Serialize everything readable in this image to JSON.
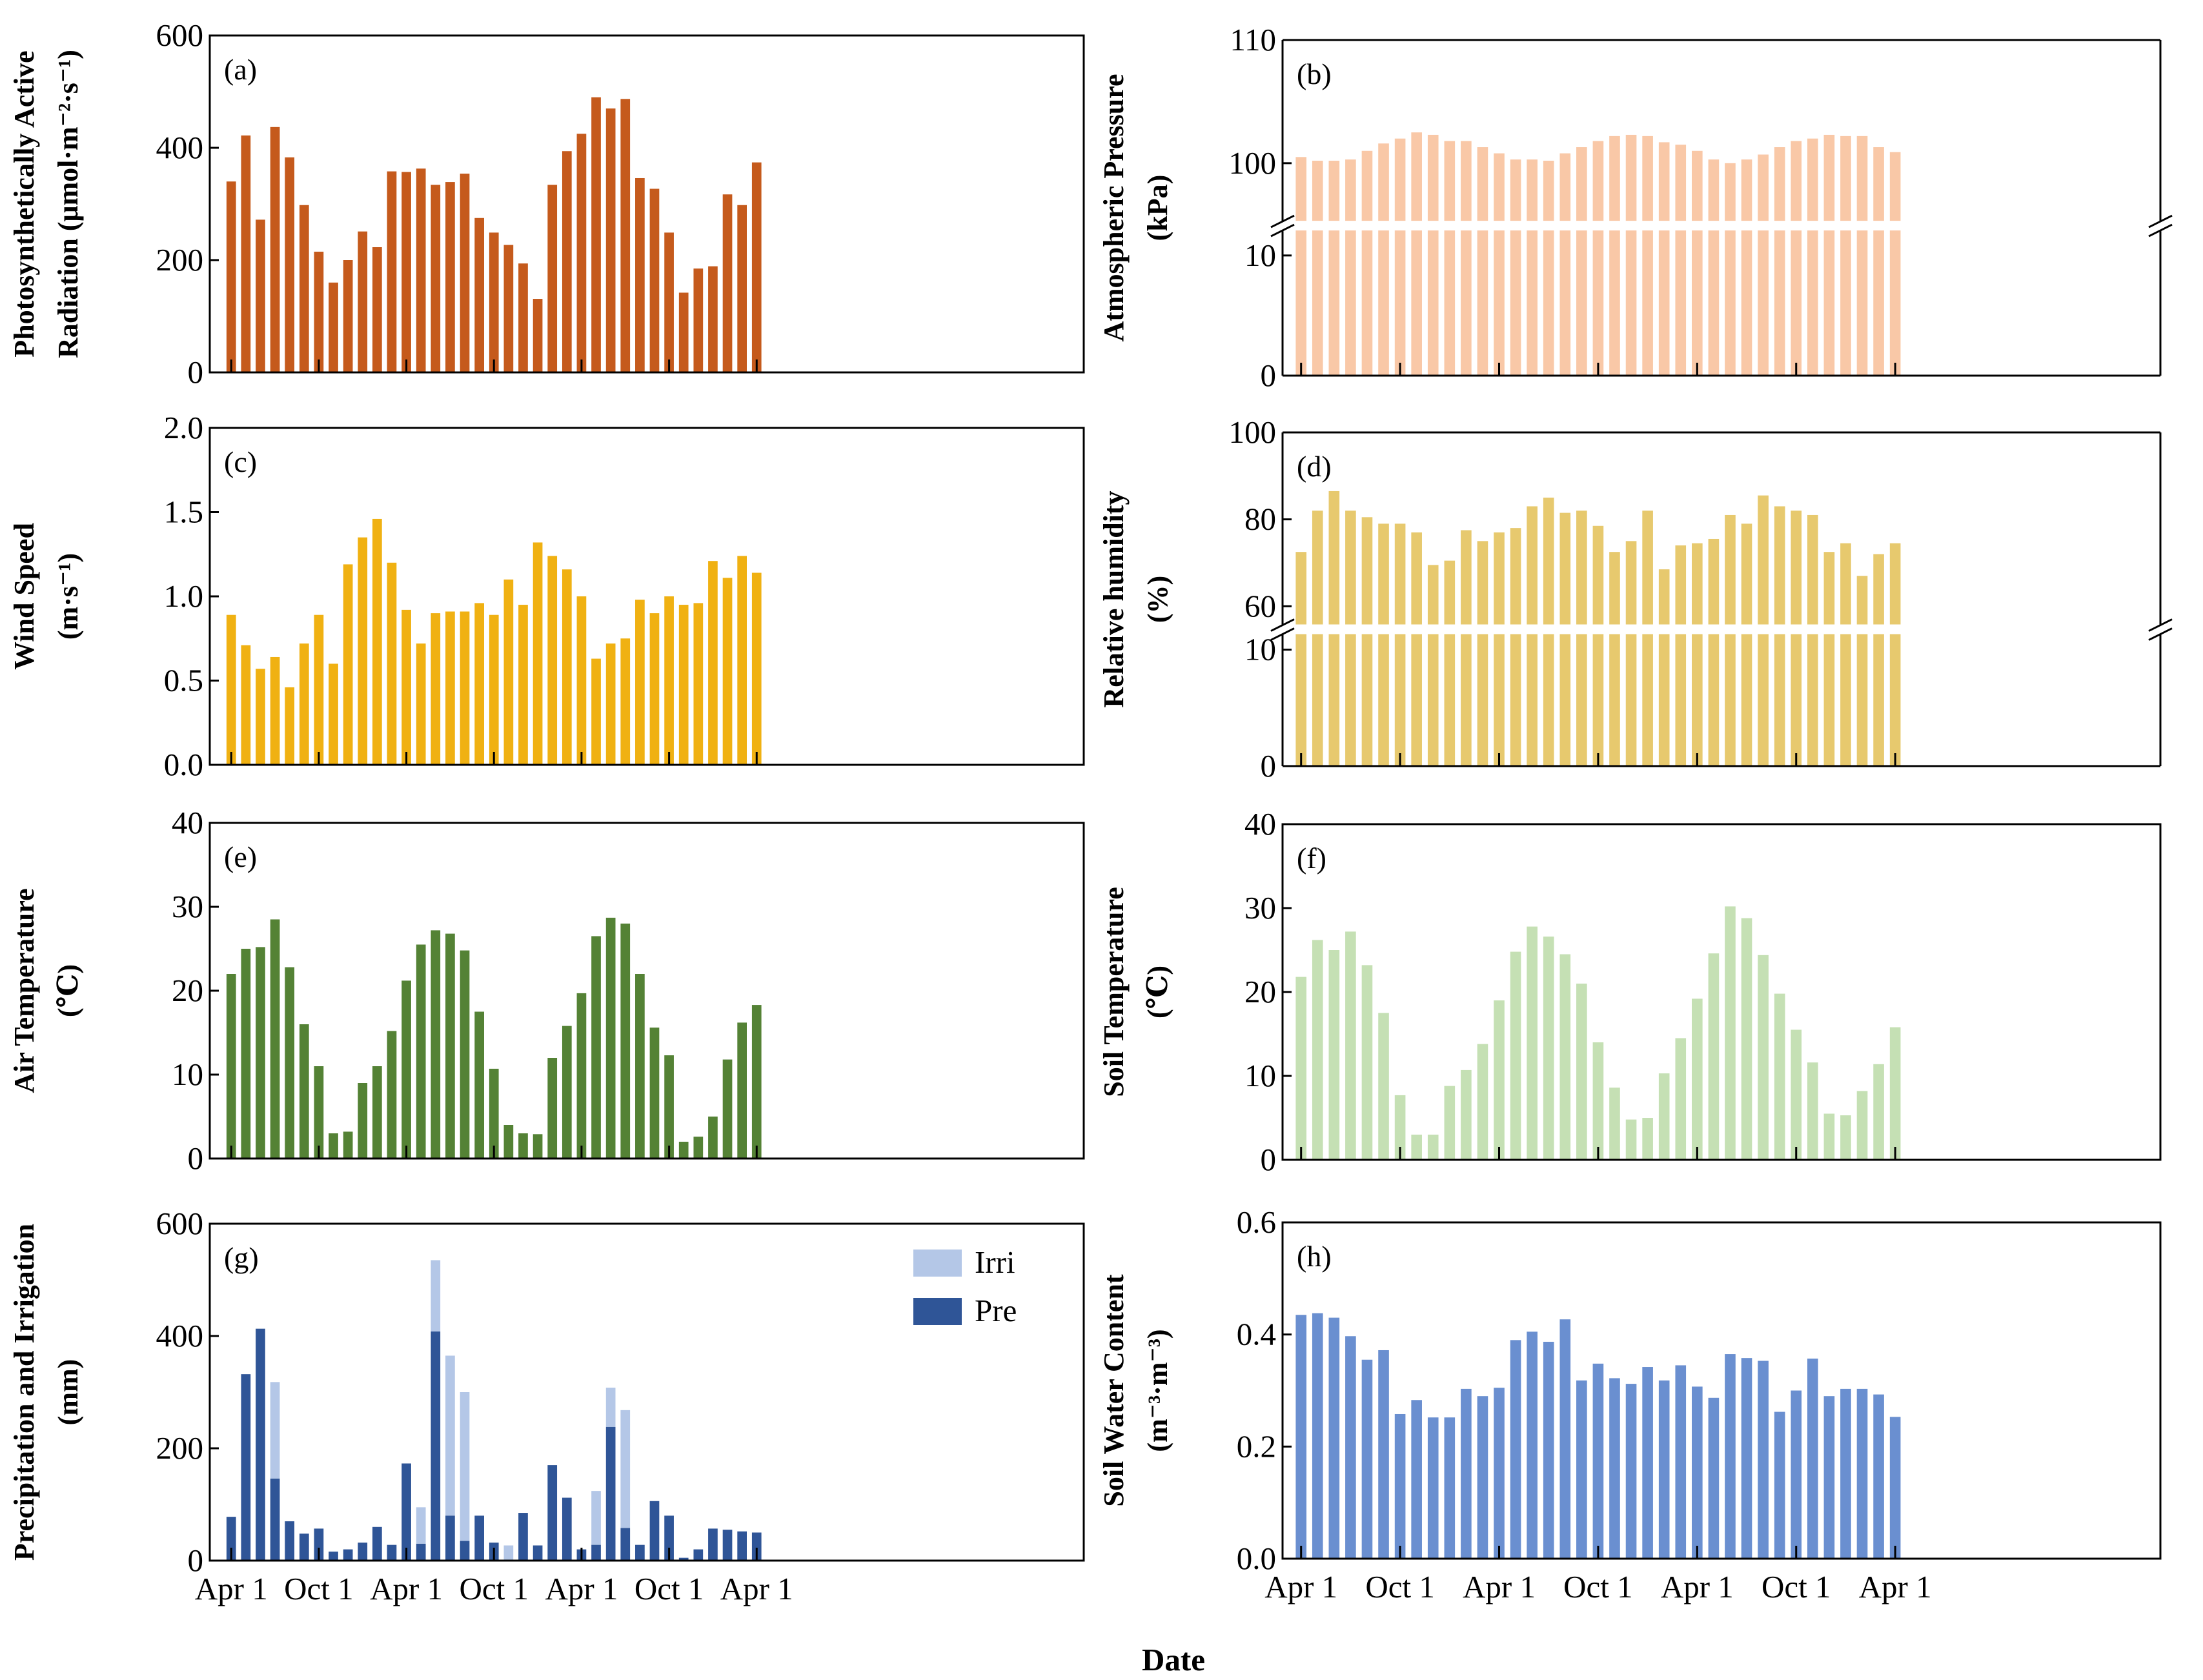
{
  "figure": {
    "x_label": "Date",
    "date_ticks": [
      "Apr 1",
      "Oct 1",
      "Apr 1",
      "Oct 1",
      "Apr 1",
      "Oct 1",
      "Apr 1"
    ]
  },
  "chart_data": [
    {
      "id": "a",
      "type": "bar",
      "panel_label": "(a)",
      "ylabel": [
        "Photosynthetically Active",
        "Radiation (μmol·m⁻²·s⁻¹)"
      ],
      "ylim": [
        0,
        600
      ],
      "yticks": [
        0,
        200,
        400,
        600
      ],
      "ytick_labels": [
        "0",
        "200",
        "400",
        "600"
      ],
      "color": "#c55a1c",
      "values": [
        340,
        422,
        272,
        437,
        383,
        298,
        215,
        160,
        200,
        251,
        223,
        358,
        357,
        363,
        334,
        339,
        354,
        275,
        249,
        227,
        194,
        131,
        334,
        394,
        425,
        490,
        470,
        487,
        346,
        327,
        249,
        142,
        185,
        189,
        317,
        298,
        374
      ]
    },
    {
      "id": "b",
      "type": "bar",
      "panel_label": "(b)",
      "ylabel": [
        "Atmospheric Pressure",
        "(kPa)"
      ],
      "axis_break": true,
      "yticks": [
        0,
        10,
        100,
        110
      ],
      "ytick_labels": [
        "0",
        "10",
        "100",
        "110"
      ],
      "color": "#f9c8a7",
      "values": [
        100.5,
        100.2,
        100.2,
        100.3,
        101.0,
        101.6,
        102.0,
        102.5,
        102.3,
        101.8,
        101.8,
        101.3,
        100.8,
        100.3,
        100.3,
        100.2,
        100.8,
        101.3,
        101.8,
        102.2,
        102.3,
        102.2,
        101.7,
        101.5,
        101.0,
        100.3,
        100.0,
        100.3,
        100.7,
        101.3,
        101.8,
        102.0,
        102.3,
        102.2,
        102.2,
        101.3,
        100.9
      ]
    },
    {
      "id": "c",
      "type": "bar",
      "panel_label": "(c)",
      "ylabel": [
        "Wind Speed",
        "(m·s⁻¹)"
      ],
      "ylim": [
        0,
        2
      ],
      "yticks": [
        0,
        0.5,
        1,
        1.5,
        2
      ],
      "ytick_labels": [
        "0.0",
        "0.5",
        "1.0",
        "1.5",
        "2.0"
      ],
      "color": "#f0b112",
      "values": [
        0.89,
        0.71,
        0.57,
        0.64,
        0.46,
        0.72,
        0.89,
        0.6,
        1.19,
        1.35,
        1.46,
        1.2,
        0.92,
        0.72,
        0.9,
        0.91,
        0.91,
        0.96,
        0.89,
        1.1,
        0.95,
        1.32,
        1.24,
        1.16,
        1.0,
        0.63,
        0.72,
        0.75,
        0.98,
        0.9,
        1.0,
        0.95,
        0.96,
        1.21,
        1.11,
        1.24,
        1.14
      ]
    },
    {
      "id": "d",
      "type": "bar",
      "panel_label": "(d)",
      "ylabel": [
        "Relative humidity",
        "(%)"
      ],
      "axis_break": true,
      "yticks": [
        0,
        10,
        60,
        80,
        100
      ],
      "ytick_labels": [
        "0",
        "10",
        "60",
        "80",
        "100"
      ],
      "color": "#e7c96e",
      "values": [
        72.5,
        82,
        86.5,
        82,
        80.5,
        79,
        79,
        77,
        69.5,
        70.5,
        77.5,
        75,
        77,
        78,
        83,
        85,
        81.5,
        82,
        78.5,
        72.5,
        75,
        82,
        68.5,
        74,
        74.5,
        75.5,
        81,
        79,
        85.5,
        83,
        82,
        81,
        72.5,
        74.5,
        67,
        72,
        74.5
      ]
    },
    {
      "id": "e",
      "type": "bar",
      "panel_label": "(e)",
      "ylabel": [
        "Air Temperature",
        "(℃)"
      ],
      "ylim": [
        0,
        40
      ],
      "yticks": [
        0,
        10,
        20,
        30,
        40
      ],
      "ytick_labels": [
        "0",
        "10",
        "20",
        "30",
        "40"
      ],
      "color": "#548235",
      "values": [
        22,
        25,
        25.2,
        28.5,
        22.8,
        16,
        11,
        3,
        3.2,
        9,
        11,
        15.2,
        21.2,
        25.5,
        27.2,
        26.8,
        24.8,
        17.5,
        10.7,
        4,
        3,
        2.9,
        12,
        15.8,
        19.7,
        26.5,
        28.7,
        28,
        22,
        15.6,
        12.3,
        2,
        2.6,
        5,
        11.8,
        16.2,
        18.3
      ]
    },
    {
      "id": "f",
      "type": "bar",
      "panel_label": "(f)",
      "ylabel": [
        "Soil Temperature",
        "(℃)"
      ],
      "ylim": [
        0,
        40
      ],
      "yticks": [
        0,
        10,
        20,
        30,
        40
      ],
      "ytick_labels": [
        "0",
        "10",
        "20",
        "30",
        "40"
      ],
      "color": "#c5e0b4",
      "values": [
        21.8,
        26.2,
        25,
        27.2,
        23.2,
        17.5,
        7.7,
        3,
        3,
        8.8,
        10.7,
        13.8,
        19,
        24.8,
        27.8,
        26.6,
        24.5,
        21,
        14,
        8.6,
        4.8,
        5,
        10.3,
        14.5,
        19.2,
        24.6,
        30.2,
        28.8,
        24.4,
        19.8,
        15.5,
        11.6,
        5.5,
        5.3,
        8.2,
        11.4,
        15.8
      ]
    },
    {
      "id": "g",
      "type": "stacked-bar",
      "panel_label": "(g)",
      "ylabel": [
        "Precipitation and Irrigation",
        "(mm)"
      ],
      "ylim": [
        0,
        600
      ],
      "yticks": [
        0,
        200,
        400,
        600
      ],
      "ytick_labels": [
        "0",
        "200",
        "400",
        "600"
      ],
      "legend_position": "top-right",
      "series": [
        {
          "name": "Pre",
          "color": "#2f5597",
          "values": [
            78,
            332,
            413,
            146,
            70,
            48,
            57,
            16,
            20,
            32,
            60,
            28,
            173,
            30,
            408,
            80,
            35,
            80,
            32,
            0,
            85,
            27,
            170,
            112,
            20,
            28,
            238,
            58,
            28,
            106,
            80,
            5,
            20,
            57,
            55,
            52,
            50
          ]
        },
        {
          "name": "Irri",
          "color": "#b4c7e7",
          "values": [
            0,
            0,
            0,
            172,
            0,
            0,
            0,
            0,
            0,
            0,
            0,
            0,
            0,
            65,
            127,
            285,
            265,
            0,
            0,
            27,
            0,
            0,
            0,
            0,
            0,
            96,
            70,
            210,
            0,
            0,
            0,
            0,
            0,
            0,
            0,
            0,
            0
          ]
        }
      ]
    },
    {
      "id": "h",
      "type": "bar",
      "panel_label": "(h)",
      "ylabel": [
        "Soil Water Content",
        "(m⁻³·m⁻³)"
      ],
      "ylim": [
        0,
        0.6
      ],
      "yticks": [
        0,
        0.2,
        0.4,
        0.6
      ],
      "ytick_labels": [
        "0.0",
        "0.2",
        "0.4",
        "0.6"
      ],
      "color": "#6a8fd0",
      "values": [
        0.435,
        0.438,
        0.43,
        0.397,
        0.355,
        0.372,
        0.258,
        0.283,
        0.252,
        0.252,
        0.303,
        0.29,
        0.305,
        0.39,
        0.405,
        0.387,
        0.427,
        0.318,
        0.348,
        0.322,
        0.312,
        0.342,
        0.318,
        0.345,
        0.307,
        0.287,
        0.365,
        0.358,
        0.353,
        0.262,
        0.3,
        0.357,
        0.29,
        0.303,
        0.303,
        0.293,
        0.253
      ]
    }
  ]
}
